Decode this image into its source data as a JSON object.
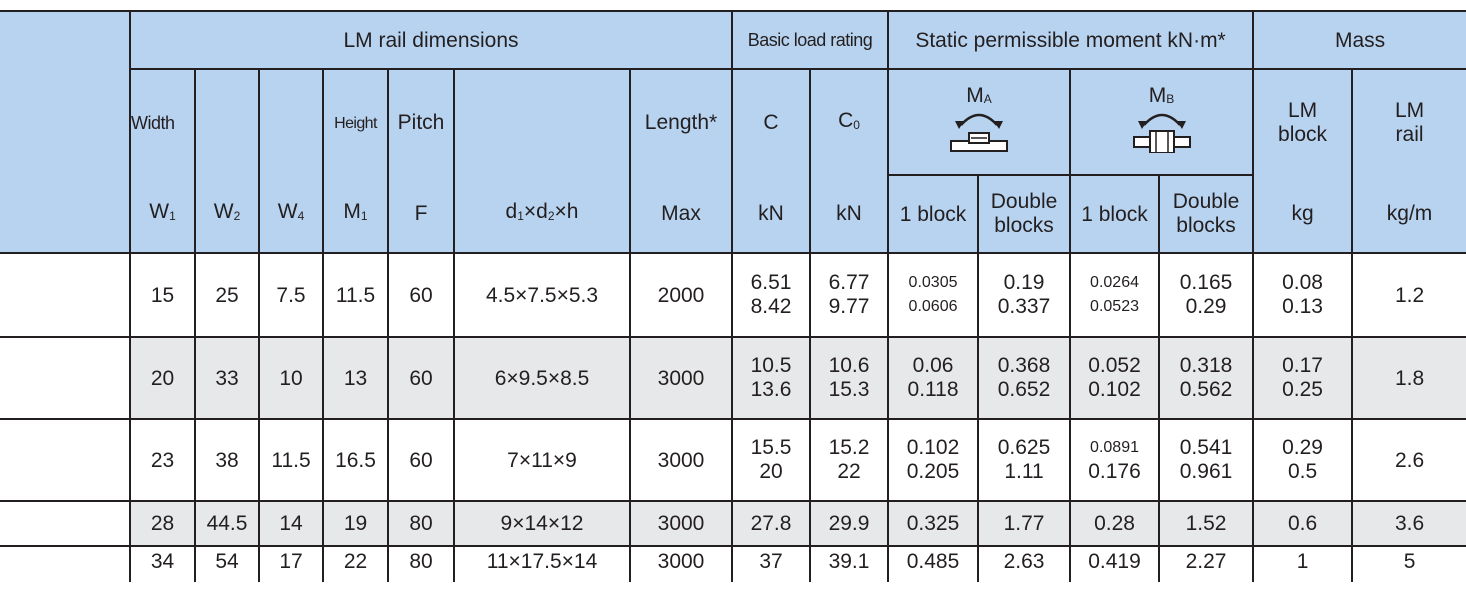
{
  "header": {
    "lm_rail_dimensions": "LM rail dimensions",
    "basic_load_rating": "Basic load rating",
    "static_moment": "Static permissible moment kN·m*",
    "mass": "Mass",
    "width": "Width",
    "height": "Height",
    "pitch": "Pitch",
    "length": "Length*",
    "c": "C",
    "c0_main": "C",
    "c0_sub": "0",
    "ma_main": "M",
    "ma_sub": "A",
    "mb_main": "M",
    "mb_sub": "B",
    "lm_block": "LM block",
    "lm_rail": "LM rail",
    "w1_main": "W",
    "w1_sub": "1",
    "w2_main": "W",
    "w2_sub": "2",
    "w4_main": "W",
    "w4_sub": "4",
    "m1_main": "M",
    "m1_sub": "1",
    "f": "F",
    "dims_d1": "d",
    "dims_sub1": "1",
    "dims_x1": "×d",
    "dims_sub2": "2",
    "dims_rest": "×h",
    "max": "Max",
    "kn1": "kN",
    "kn2": "kN",
    "one_block_a": "1 block",
    "double_a": "Double blocks",
    "one_block_b": "1 block",
    "double_b": "Double blocks",
    "kg": "kg",
    "kgm": "kg/m"
  },
  "rows": [
    {
      "w1": "15",
      "w2": "25",
      "w4": "7.5",
      "m1": "11.5",
      "f": "60",
      "dims": "4.5×7.5×5.3",
      "max": "2000",
      "c": [
        "6.51",
        "8.42"
      ],
      "c0": [
        "6.77",
        "9.77"
      ],
      "ma1": [
        "0.0305",
        "0.0606"
      ],
      "ma2": [
        "0.19",
        "0.337"
      ],
      "mb1": [
        "0.0264",
        "0.0523"
      ],
      "mb2": [
        "0.165",
        "0.29"
      ],
      "block": [
        "0.08",
        "0.13"
      ],
      "rail": "1.2"
    },
    {
      "w1": "20",
      "w2": "33",
      "w4": "10",
      "m1": "13",
      "f": "60",
      "dims": "6×9.5×8.5",
      "max": "3000",
      "c": [
        "10.5",
        "13.6"
      ],
      "c0": [
        "10.6",
        "15.3"
      ],
      "ma1": [
        "0.06",
        "0.118"
      ],
      "ma2": [
        "0.368",
        "0.652"
      ],
      "mb1": [
        "0.052",
        "0.102"
      ],
      "mb2": [
        "0.318",
        "0.562"
      ],
      "block": [
        "0.17",
        "0.25"
      ],
      "rail": "1.8"
    },
    {
      "w1": "23",
      "w2": "38",
      "w4": "11.5",
      "m1": "16.5",
      "f": "60",
      "dims": "7×11×9",
      "max": "3000",
      "c": [
        "15.5",
        "20"
      ],
      "c0": [
        "15.2",
        "22"
      ],
      "ma1": [
        "0.102",
        "0.205"
      ],
      "ma2": [
        "0.625",
        "1.11"
      ],
      "mb1": [
        "0.0891",
        "0.176"
      ],
      "mb2": [
        "0.541",
        "0.961"
      ],
      "block": [
        "0.29",
        "0.5"
      ],
      "rail": "2.6"
    },
    {
      "w1": "28",
      "w2": "44.5",
      "w4": "14",
      "m1": "19",
      "f": "80",
      "dims": "9×14×12",
      "max": "3000",
      "c": "27.8",
      "c0": "29.9",
      "ma1": "0.325",
      "ma2": "1.77",
      "mb1": "0.28",
      "mb2": "1.52",
      "block": "0.6",
      "rail": "3.6"
    },
    {
      "w1": "34",
      "w2": "54",
      "w4": "17",
      "m1": "22",
      "f": "80",
      "dims": "11×17.5×14",
      "max": "3000",
      "c": "37",
      "c0": "39.1",
      "ma1": "0.485",
      "ma2": "2.63",
      "mb1": "0.419",
      "mb2": "2.27",
      "block": "1",
      "rail": "5"
    }
  ],
  "colors": {
    "header_bg": "#b8d3ef",
    "stripe_bg": "#e7e8e9",
    "line": "#231f20"
  },
  "icons": {
    "ma": "pitch-moment-icon",
    "mb": "yaw-moment-icon"
  }
}
